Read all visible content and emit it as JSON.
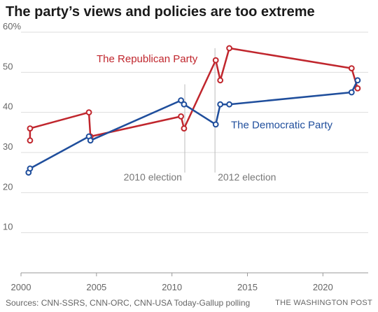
{
  "title": "The party’s views and policies are too extreme",
  "source": "Sources: CNN-SSRS, CNN-ORC, CNN-USA Today-Gallup polling",
  "credit": "THE WASHINGTON POST",
  "colors": {
    "republican": "#c0262d",
    "democratic": "#1f4e9c",
    "grid": "#dddddd",
    "axis": "#999999"
  },
  "chart_data": {
    "type": "line",
    "title": "The party’s views and policies are too extreme",
    "xlabel": "",
    "ylabel": "",
    "xlim": [
      2000,
      2023
    ],
    "ylim": [
      0,
      60
    ],
    "x_ticks": [
      2000,
      2005,
      2010,
      2015,
      2020
    ],
    "y_ticks": [
      10,
      20,
      30,
      40,
      50,
      60
    ],
    "y_tick_labels": [
      "10",
      "20",
      "30",
      "40",
      "50",
      "60%"
    ],
    "grid": true,
    "legend": "direct labels",
    "series": [
      {
        "name": "The Republican Party",
        "color": "#c0262d",
        "points": [
          [
            2000.6,
            33
          ],
          [
            2000.6,
            36
          ],
          [
            2004.5,
            40
          ],
          [
            2004.6,
            34
          ],
          [
            2010.6,
            39
          ],
          [
            2010.8,
            36
          ],
          [
            2012.9,
            53
          ],
          [
            2013.2,
            48
          ],
          [
            2013.8,
            56
          ],
          [
            2021.9,
            51
          ],
          [
            2022.3,
            46
          ]
        ]
      },
      {
        "name": "The Democratic Party",
        "color": "#1f4e9c",
        "points": [
          [
            2000.5,
            25
          ],
          [
            2000.6,
            26
          ],
          [
            2004.5,
            34
          ],
          [
            2004.6,
            33
          ],
          [
            2010.6,
            43
          ],
          [
            2010.8,
            42
          ],
          [
            2012.9,
            37
          ],
          [
            2013.2,
            42
          ],
          [
            2013.8,
            42
          ],
          [
            2021.9,
            45
          ],
          [
            2022.3,
            48
          ]
        ]
      }
    ],
    "annotations": [
      {
        "label": "2010 election",
        "x": 2010.85
      },
      {
        "label": "2012 election",
        "x": 2012.85
      }
    ]
  }
}
